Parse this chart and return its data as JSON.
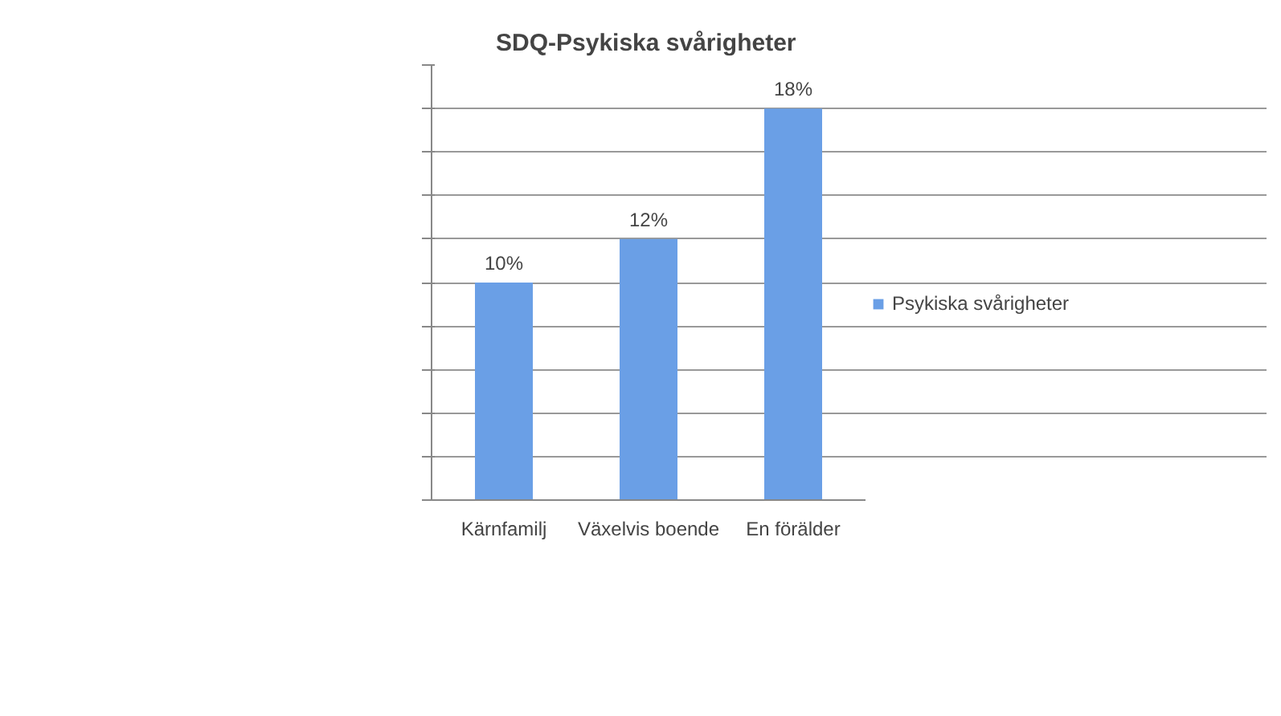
{
  "chart_data": {
    "type": "bar",
    "title": "SDQ-Psykiska svårigheter",
    "categories": [
      "Kärnfamilj",
      "Växelvis boende",
      "En förälder"
    ],
    "series": [
      {
        "name": "Psykiska svårigheter",
        "color": "#6a9fe6",
        "values": [
          10,
          12,
          18
        ],
        "value_labels": [
          "10%",
          "12%",
          "18%"
        ]
      }
    ],
    "ylim": [
      0,
      20
    ],
    "yticks": [
      {
        "value": 0,
        "label": null
      },
      {
        "value": 2,
        "label": null
      },
      {
        "value": 4,
        "label": null
      },
      {
        "value": 6,
        "label": null
      },
      {
        "value": 8,
        "label": null
      },
      {
        "value": 10,
        "label": null
      },
      {
        "value": 12,
        "label": null
      },
      {
        "value": 14,
        "label": null
      },
      {
        "value": 16,
        "label": null
      },
      {
        "value": 18,
        "label": null
      },
      {
        "value": 20,
        "label": null
      }
    ],
    "tick_labels": "x",
    "grid": "y",
    "legend": "right"
  }
}
